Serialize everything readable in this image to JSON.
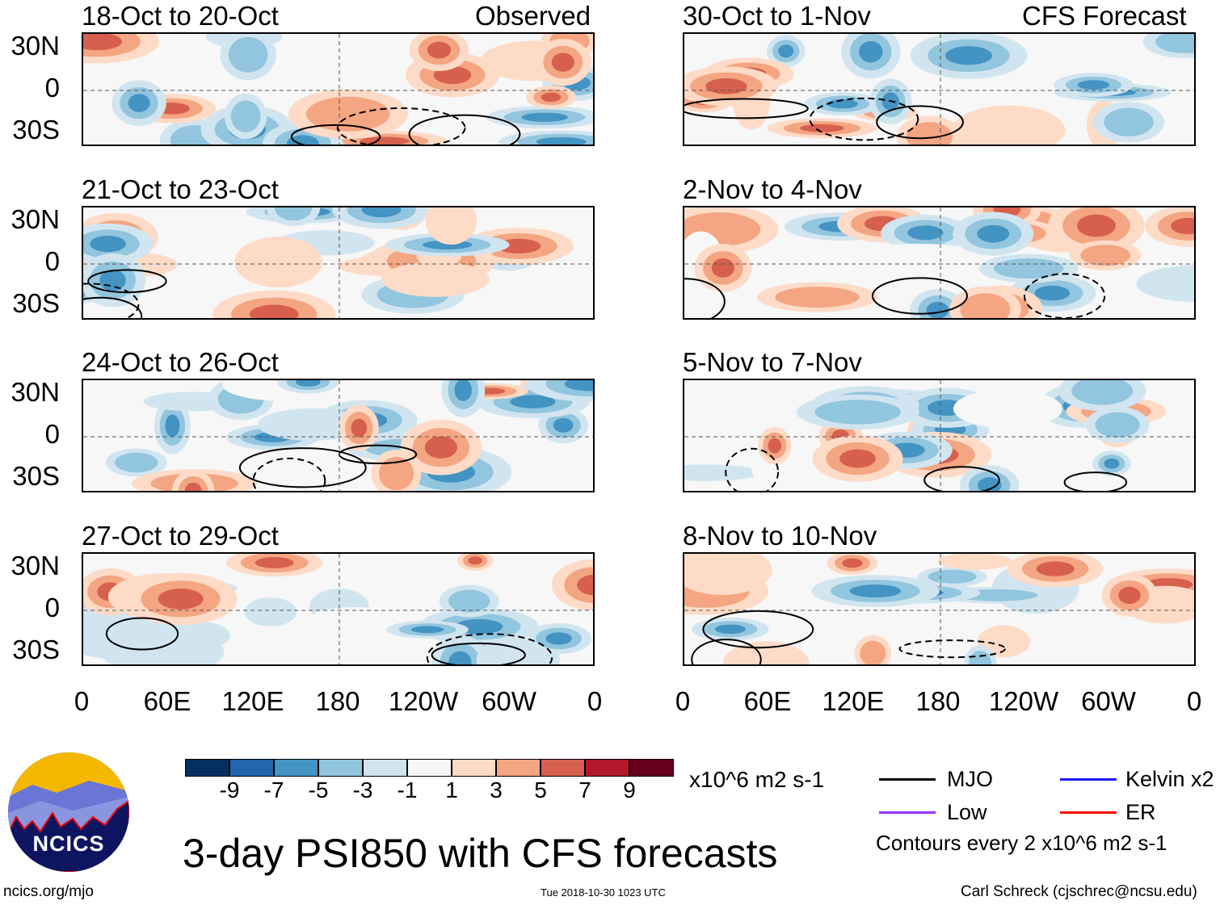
{
  "title": "3-day PSI850 with CFS forecasts",
  "units": "x10^6 m2 s-1",
  "left_header": "Observed",
  "right_header": "CFS Forecast",
  "panels_left": [
    "18-Oct to 20-Oct",
    "21-Oct to 23-Oct",
    "24-Oct to 26-Oct",
    "27-Oct to 29-Oct"
  ],
  "panels_right": [
    "30-Oct to 1-Nov",
    "2-Nov to 4-Nov",
    "5-Nov to 7-Nov",
    "8-Nov to 10-Nov"
  ],
  "lat_labels": [
    "30N",
    "0",
    "30S"
  ],
  "lon_labels": [
    "0",
    "60E",
    "120E",
    "180",
    "120W",
    "60W",
    "0"
  ],
  "colorbar": {
    "labels": [
      "-9",
      "-7",
      "-5",
      "-3",
      "-1",
      "1",
      "3",
      "5",
      "7",
      "9"
    ],
    "colors": [
      "#053061",
      "#2166ac",
      "#4393c3",
      "#92c5de",
      "#d1e5f0",
      "#f7f7f7",
      "#fddbc7",
      "#f4a582",
      "#d6604d",
      "#b2182b",
      "#67001f"
    ]
  },
  "legend": {
    "mjo": "MJO",
    "kelvin": "Kelvin x2",
    "low": "Low",
    "er": "ER",
    "contours": "Contours every 2 x10^6 m2 s-1",
    "colors": {
      "mjo": "#000000",
      "kelvin": "#1a1aff",
      "low": "#9933ff",
      "er": "#ff0000"
    }
  },
  "logo_text": "NCICS",
  "url": "ncics.org/mjo",
  "timestamp": "Tue 2018-10-30 1023 UTC",
  "credit": "Carl Schreck (cjschrec@ncsu.edu)"
}
